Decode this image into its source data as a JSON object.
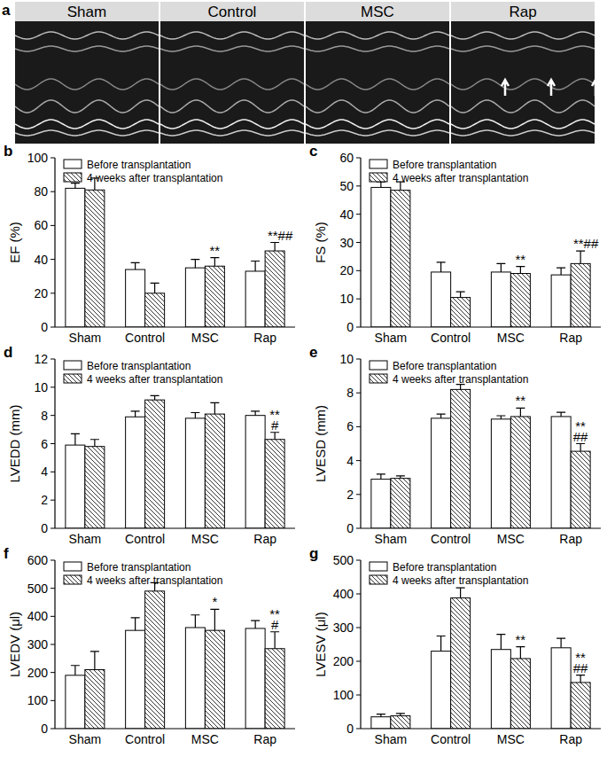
{
  "panel_a": {
    "label": "a",
    "images": [
      "Sham",
      "Control",
      "MSC",
      "Rap"
    ]
  },
  "chart_data": [
    {
      "type": "bar",
      "title": "b",
      "y_label": "EF (%)",
      "categories": [
        "Sham",
        "Control",
        "MSC",
        "Rap"
      ],
      "ylim": [
        0,
        100
      ],
      "yticks": [
        0,
        20,
        40,
        60,
        80,
        100
      ],
      "legend": "top-left",
      "series": [
        {
          "name": "Before transplantation",
          "color": "#ffffff",
          "line_style": "solid",
          "values": [
            82,
            34,
            35,
            33
          ],
          "errors": [
            3,
            4,
            5,
            6
          ],
          "annotations": [
            null,
            null,
            null,
            null
          ]
        },
        {
          "name": "4 weeks after transplantation",
          "color": "#ffffff",
          "line_style": "hatched",
          "values": [
            81,
            20,
            36,
            45
          ],
          "errors": [
            7,
            6,
            5,
            5
          ],
          "annotations": [
            null,
            null,
            [
              "**"
            ],
            [
              "**##"
            ]
          ]
        }
      ]
    },
    {
      "type": "bar",
      "title": "c",
      "y_label": "FS (%)",
      "categories": [
        "Sham",
        "Control",
        "MSC",
        "Rap"
      ],
      "ylim": [
        0,
        60
      ],
      "yticks": [
        0,
        10,
        20,
        30,
        40,
        50,
        60
      ],
      "legend": "top-left",
      "series": [
        {
          "name": "Before transplantation",
          "color": "#ffffff",
          "line_style": "solid",
          "values": [
            49.5,
            19.5,
            19.5,
            18.5
          ],
          "errors": [
            2,
            3.5,
            3,
            2.5
          ],
          "annotations": [
            null,
            null,
            null,
            null
          ]
        },
        {
          "name": "4 weeks after transplantation",
          "color": "#ffffff",
          "line_style": "hatched",
          "values": [
            48.5,
            10.5,
            19,
            22.5
          ],
          "errors": [
            3,
            2,
            2.5,
            4.5
          ],
          "annotations": [
            null,
            null,
            [
              "**"
            ],
            [
              "**##"
            ]
          ]
        }
      ]
    },
    {
      "type": "bar",
      "title": "d",
      "y_label": "LVEDD (mm)",
      "categories": [
        "Sham",
        "Control",
        "MSC",
        "Rap"
      ],
      "ylim": [
        0,
        12
      ],
      "yticks": [
        0,
        2,
        4,
        6,
        8,
        10,
        12
      ],
      "legend": "top-left",
      "series": [
        {
          "name": "Before transplantation",
          "color": "#ffffff",
          "line_style": "solid",
          "values": [
            5.9,
            7.9,
            7.8,
            8.0
          ],
          "errors": [
            0.8,
            0.4,
            0.4,
            0.3
          ],
          "annotations": [
            null,
            null,
            null,
            null
          ]
        },
        {
          "name": "4 weeks after transplantation",
          "color": "#ffffff",
          "line_style": "hatched",
          "values": [
            5.8,
            9.1,
            8.1,
            6.3
          ],
          "errors": [
            0.5,
            0.3,
            0.8,
            0.5
          ],
          "annotations": [
            null,
            null,
            null,
            [
              "**",
              "#"
            ]
          ]
        }
      ]
    },
    {
      "type": "bar",
      "title": "e",
      "y_label": "LVESD (mm)",
      "categories": [
        "Sham",
        "Control",
        "MSC",
        "Rap"
      ],
      "ylim": [
        0,
        10
      ],
      "yticks": [
        0,
        2,
        4,
        6,
        8,
        10
      ],
      "legend": "top-left",
      "series": [
        {
          "name": "Before transplantation",
          "color": "#ffffff",
          "line_style": "solid",
          "values": [
            2.9,
            6.5,
            6.45,
            6.6
          ],
          "errors": [
            0.3,
            0.25,
            0.2,
            0.25
          ],
          "annotations": [
            null,
            null,
            null,
            null
          ]
        },
        {
          "name": "4 weeks after transplantation",
          "color": "#ffffff",
          "line_style": "hatched",
          "values": [
            2.95,
            8.2,
            6.6,
            4.55
          ],
          "errors": [
            0.15,
            0.3,
            0.5,
            0.45
          ],
          "annotations": [
            null,
            null,
            [
              "**"
            ],
            [
              "**",
              "##"
            ]
          ]
        }
      ]
    },
    {
      "type": "bar",
      "title": "f",
      "y_label": "LVEDV (μl)",
      "categories": [
        "Sham",
        "Control",
        "MSC",
        "Rap"
      ],
      "ylim": [
        0,
        600
      ],
      "yticks": [
        0,
        100,
        200,
        300,
        400,
        500,
        600
      ],
      "legend": "top-left",
      "series": [
        {
          "name": "Before transplantation",
          "color": "#ffffff",
          "line_style": "solid",
          "values": [
            190,
            350,
            360,
            357
          ],
          "errors": [
            35,
            45,
            45,
            28
          ],
          "annotations": [
            null,
            null,
            null,
            null
          ]
        },
        {
          "name": "4 weeks after transplantation",
          "color": "#ffffff",
          "line_style": "hatched",
          "values": [
            210,
            490,
            350,
            285
          ],
          "errors": [
            65,
            30,
            75,
            60
          ],
          "annotations": [
            null,
            null,
            [
              "*"
            ],
            [
              "**",
              "#"
            ]
          ]
        }
      ]
    },
    {
      "type": "bar",
      "title": "g",
      "y_label": "LVESV (μl)",
      "categories": [
        "Sham",
        "Control",
        "MSC",
        "Rap"
      ],
      "ylim": [
        0,
        500
      ],
      "yticks": [
        0,
        100,
        200,
        300,
        400,
        500
      ],
      "legend": "top-left",
      "series": [
        {
          "name": "Before transplantation",
          "color": "#ffffff",
          "line_style": "solid",
          "values": [
            35,
            230,
            235,
            240
          ],
          "errors": [
            8,
            45,
            45,
            28
          ],
          "annotations": [
            null,
            null,
            null,
            null
          ]
        },
        {
          "name": "4 weeks after transplantation",
          "color": "#ffffff",
          "line_style": "hatched",
          "values": [
            38,
            388,
            208,
            137
          ],
          "errors": [
            7,
            30,
            35,
            22
          ],
          "annotations": [
            null,
            null,
            [
              "**"
            ],
            [
              "**",
              "##"
            ]
          ]
        }
      ]
    }
  ]
}
